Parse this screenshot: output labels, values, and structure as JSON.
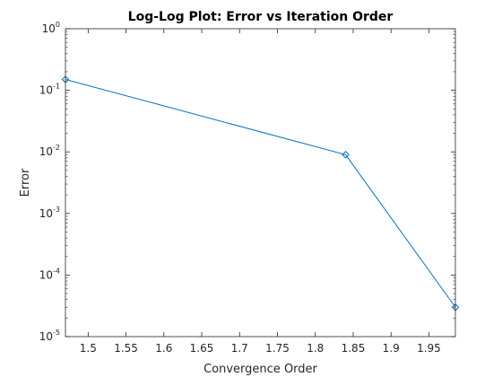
{
  "chart_data": {
    "type": "line",
    "title": "Log-Log Plot: Error vs Iteration Order",
    "xlabel": "Convergence Order",
    "ylabel": "Error",
    "x_scale": "linear",
    "y_scale": "log",
    "xlim": [
      1.47,
      1.985
    ],
    "ylim": [
      1e-05,
      1
    ],
    "grid": false,
    "x_ticks": [
      1.5,
      1.55,
      1.6,
      1.65,
      1.7,
      1.75,
      1.8,
      1.85,
      1.9,
      1.95
    ],
    "x_tick_labels": [
      "1.5",
      "1.55",
      "1.6",
      "1.65",
      "1.7",
      "1.75",
      "1.8",
      "1.85",
      "1.9",
      "1.95"
    ],
    "y_ticks": [
      1,
      0.1,
      0.01,
      0.001,
      0.0001,
      1e-05
    ],
    "y_tick_labels": [
      {
        "base": "10",
        "exp": "0"
      },
      {
        "base": "10",
        "exp": "-1"
      },
      {
        "base": "10",
        "exp": "-2"
      },
      {
        "base": "10",
        "exp": "-3"
      },
      {
        "base": "10",
        "exp": "-4"
      },
      {
        "base": "10",
        "exp": "-5"
      }
    ],
    "series": [
      {
        "marker": "diamond",
        "color": "#0072BD",
        "x": [
          1.47,
          1.84,
          1.985
        ],
        "y": [
          0.15,
          0.009,
          3e-05
        ]
      }
    ]
  }
}
